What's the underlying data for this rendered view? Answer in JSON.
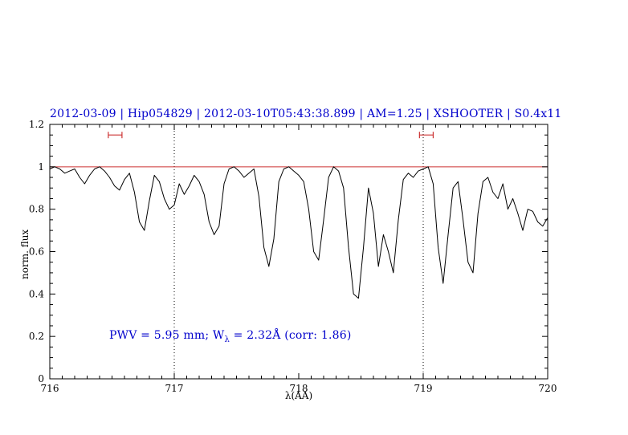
{
  "colors": {
    "title": "#0000cc",
    "annotation": "#0000cc",
    "reference_line": "#cc3333",
    "marker": "#cc3333",
    "spectrum": "#000000",
    "vline": "#000000",
    "axis": "#000000"
  },
  "annotation": {
    "part1": "PWV = 5.95 mm; W",
    "sub": "λ",
    "part2": " = 2.32Å (corr: 1.86)"
  },
  "chart_data": {
    "type": "line",
    "title": "2012-03-09 | Hip054829 | 2012-03-10T05:43:38.899 | AM=1.25 | XSHOOTER | S0.4x11",
    "xlabel": "λ(AA)",
    "ylabel": "norm. flux",
    "xlim": [
      716,
      720
    ],
    "ylim": [
      0,
      1.2
    ],
    "xticks": [
      716,
      717,
      718,
      719,
      720
    ],
    "xtick_labels": [
      "716",
      "717",
      "718",
      "719",
      "720"
    ],
    "yticks": [
      0,
      0.2,
      0.4,
      0.6,
      0.8,
      1,
      1.2
    ],
    "ytick_labels": [
      "0",
      "0.2",
      "0.4",
      "0.6",
      "0.8",
      "1",
      "1.2"
    ],
    "x_minor_step": 0.1,
    "y_minor_step": 0.05,
    "grid": false,
    "legend": false,
    "reference_line_y": 1.0,
    "vlines": [
      717,
      719
    ],
    "markers": [
      {
        "x1": 716.47,
        "x2": 716.58,
        "y": 1.15
      },
      {
        "x1": 718.97,
        "x2": 719.08,
        "y": 1.15
      }
    ],
    "series": [
      {
        "name": "telluric-spectrum",
        "points": [
          [
            716.0,
            0.99
          ],
          [
            716.04,
            1.0
          ],
          [
            716.08,
            0.99
          ],
          [
            716.12,
            0.97
          ],
          [
            716.16,
            0.98
          ],
          [
            716.2,
            0.99
          ],
          [
            716.24,
            0.95
          ],
          [
            716.28,
            0.92
          ],
          [
            716.32,
            0.96
          ],
          [
            716.36,
            0.99
          ],
          [
            716.4,
            1.0
          ],
          [
            716.44,
            0.98
          ],
          [
            716.48,
            0.95
          ],
          [
            716.52,
            0.91
          ],
          [
            716.56,
            0.89
          ],
          [
            716.6,
            0.94
          ],
          [
            716.64,
            0.97
          ],
          [
            716.68,
            0.88
          ],
          [
            716.72,
            0.74
          ],
          [
            716.76,
            0.7
          ],
          [
            716.8,
            0.84
          ],
          [
            716.84,
            0.96
          ],
          [
            716.88,
            0.93
          ],
          [
            716.92,
            0.85
          ],
          [
            716.96,
            0.8
          ],
          [
            717.0,
            0.82
          ],
          [
            717.04,
            0.92
          ],
          [
            717.08,
            0.87
          ],
          [
            717.12,
            0.91
          ],
          [
            717.16,
            0.96
          ],
          [
            717.2,
            0.93
          ],
          [
            717.24,
            0.87
          ],
          [
            717.28,
            0.74
          ],
          [
            717.32,
            0.68
          ],
          [
            717.36,
            0.72
          ],
          [
            717.4,
            0.92
          ],
          [
            717.44,
            0.99
          ],
          [
            717.48,
            1.0
          ],
          [
            717.52,
            0.98
          ],
          [
            717.56,
            0.95
          ],
          [
            717.6,
            0.97
          ],
          [
            717.64,
            0.99
          ],
          [
            717.68,
            0.86
          ],
          [
            717.72,
            0.62
          ],
          [
            717.76,
            0.53
          ],
          [
            717.8,
            0.66
          ],
          [
            717.84,
            0.93
          ],
          [
            717.88,
            0.99
          ],
          [
            717.92,
            1.0
          ],
          [
            717.96,
            0.98
          ],
          [
            718.0,
            0.96
          ],
          [
            718.04,
            0.93
          ],
          [
            718.08,
            0.8
          ],
          [
            718.12,
            0.6
          ],
          [
            718.16,
            0.56
          ],
          [
            718.2,
            0.75
          ],
          [
            718.24,
            0.95
          ],
          [
            718.28,
            1.0
          ],
          [
            718.32,
            0.98
          ],
          [
            718.36,
            0.9
          ],
          [
            718.4,
            0.62
          ],
          [
            718.44,
            0.4
          ],
          [
            718.48,
            0.38
          ],
          [
            718.52,
            0.62
          ],
          [
            718.56,
            0.9
          ],
          [
            718.6,
            0.78
          ],
          [
            718.64,
            0.53
          ],
          [
            718.68,
            0.68
          ],
          [
            718.72,
            0.6
          ],
          [
            718.76,
            0.5
          ],
          [
            718.8,
            0.75
          ],
          [
            718.84,
            0.94
          ],
          [
            718.88,
            0.97
          ],
          [
            718.92,
            0.95
          ],
          [
            718.96,
            0.98
          ],
          [
            719.0,
            0.99
          ],
          [
            719.04,
            1.0
          ],
          [
            719.08,
            0.92
          ],
          [
            719.12,
            0.62
          ],
          [
            719.16,
            0.45
          ],
          [
            719.2,
            0.68
          ],
          [
            719.24,
            0.9
          ],
          [
            719.28,
            0.93
          ],
          [
            719.32,
            0.75
          ],
          [
            719.36,
            0.55
          ],
          [
            719.4,
            0.5
          ],
          [
            719.44,
            0.78
          ],
          [
            719.48,
            0.93
          ],
          [
            719.52,
            0.95
          ],
          [
            719.56,
            0.88
          ],
          [
            719.6,
            0.85
          ],
          [
            719.64,
            0.92
          ],
          [
            719.68,
            0.8
          ],
          [
            719.72,
            0.85
          ],
          [
            719.76,
            0.78
          ],
          [
            719.8,
            0.7
          ],
          [
            719.84,
            0.8
          ],
          [
            719.88,
            0.79
          ],
          [
            719.92,
            0.74
          ],
          [
            719.96,
            0.72
          ],
          [
            720.0,
            0.76
          ]
        ]
      }
    ]
  }
}
